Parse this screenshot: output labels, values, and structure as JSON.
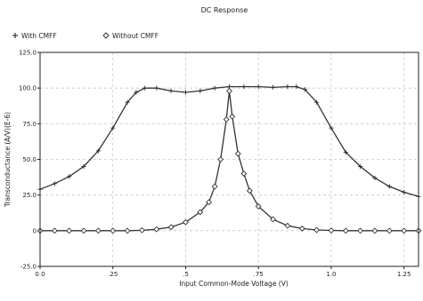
{
  "chart_data": {
    "type": "line",
    "title": "DC Response",
    "xlabel": "Input Common-Mode Voltage (V)",
    "ylabel": "Transconductance (A/V)(E-6)",
    "xlim": [
      0.0,
      1.3
    ],
    "ylim": [
      -25.0,
      125.0
    ],
    "x_ticks": [
      0.0,
      0.25,
      0.5,
      0.75,
      1.0,
      1.25
    ],
    "x_tick_labels": [
      "0.0",
      ".25",
      ".5",
      ".75",
      "1.0",
      "1.25"
    ],
    "y_ticks": [
      -25.0,
      0,
      25.0,
      50.0,
      75.0,
      100.0,
      125.0
    ],
    "y_tick_labels": [
      "-25.0",
      "0",
      "25.0",
      "50.0",
      "75.0",
      "100.0",
      "125.0"
    ],
    "grid": true,
    "legend_position": "top-left",
    "series": [
      {
        "name": "With CMFF",
        "marker": "plus",
        "color": "#333333",
        "x": [
          0.0,
          0.05,
          0.1,
          0.15,
          0.2,
          0.25,
          0.3,
          0.33,
          0.36,
          0.4,
          0.45,
          0.5,
          0.55,
          0.6,
          0.65,
          0.7,
          0.75,
          0.8,
          0.85,
          0.88,
          0.91,
          0.95,
          1.0,
          1.05,
          1.1,
          1.15,
          1.2,
          1.25,
          1.3
        ],
        "y": [
          29,
          33,
          38,
          45,
          56,
          72,
          90,
          97,
          100,
          100,
          98,
          97,
          98,
          100,
          101,
          101,
          101,
          100.5,
          101,
          101,
          99,
          90,
          72,
          55,
          45,
          37,
          31,
          27,
          24
        ]
      },
      {
        "name": "Without CMFF",
        "marker": "diamond",
        "color": "#333333",
        "x": [
          0.0,
          0.05,
          0.1,
          0.15,
          0.2,
          0.25,
          0.3,
          0.35,
          0.4,
          0.45,
          0.5,
          0.55,
          0.58,
          0.6,
          0.62,
          0.64,
          0.65,
          0.66,
          0.68,
          0.7,
          0.72,
          0.75,
          0.8,
          0.85,
          0.9,
          0.95,
          1.0,
          1.05,
          1.1,
          1.15,
          1.2,
          1.25,
          1.3
        ],
        "y": [
          0,
          0,
          0,
          0,
          0,
          0,
          0,
          0.3,
          1,
          2.5,
          6,
          13,
          20,
          31,
          50,
          78,
          98,
          80,
          54,
          40,
          28,
          17,
          8,
          3.5,
          1.5,
          0.5,
          0.2,
          0,
          0,
          0,
          0,
          0,
          0
        ]
      }
    ]
  }
}
